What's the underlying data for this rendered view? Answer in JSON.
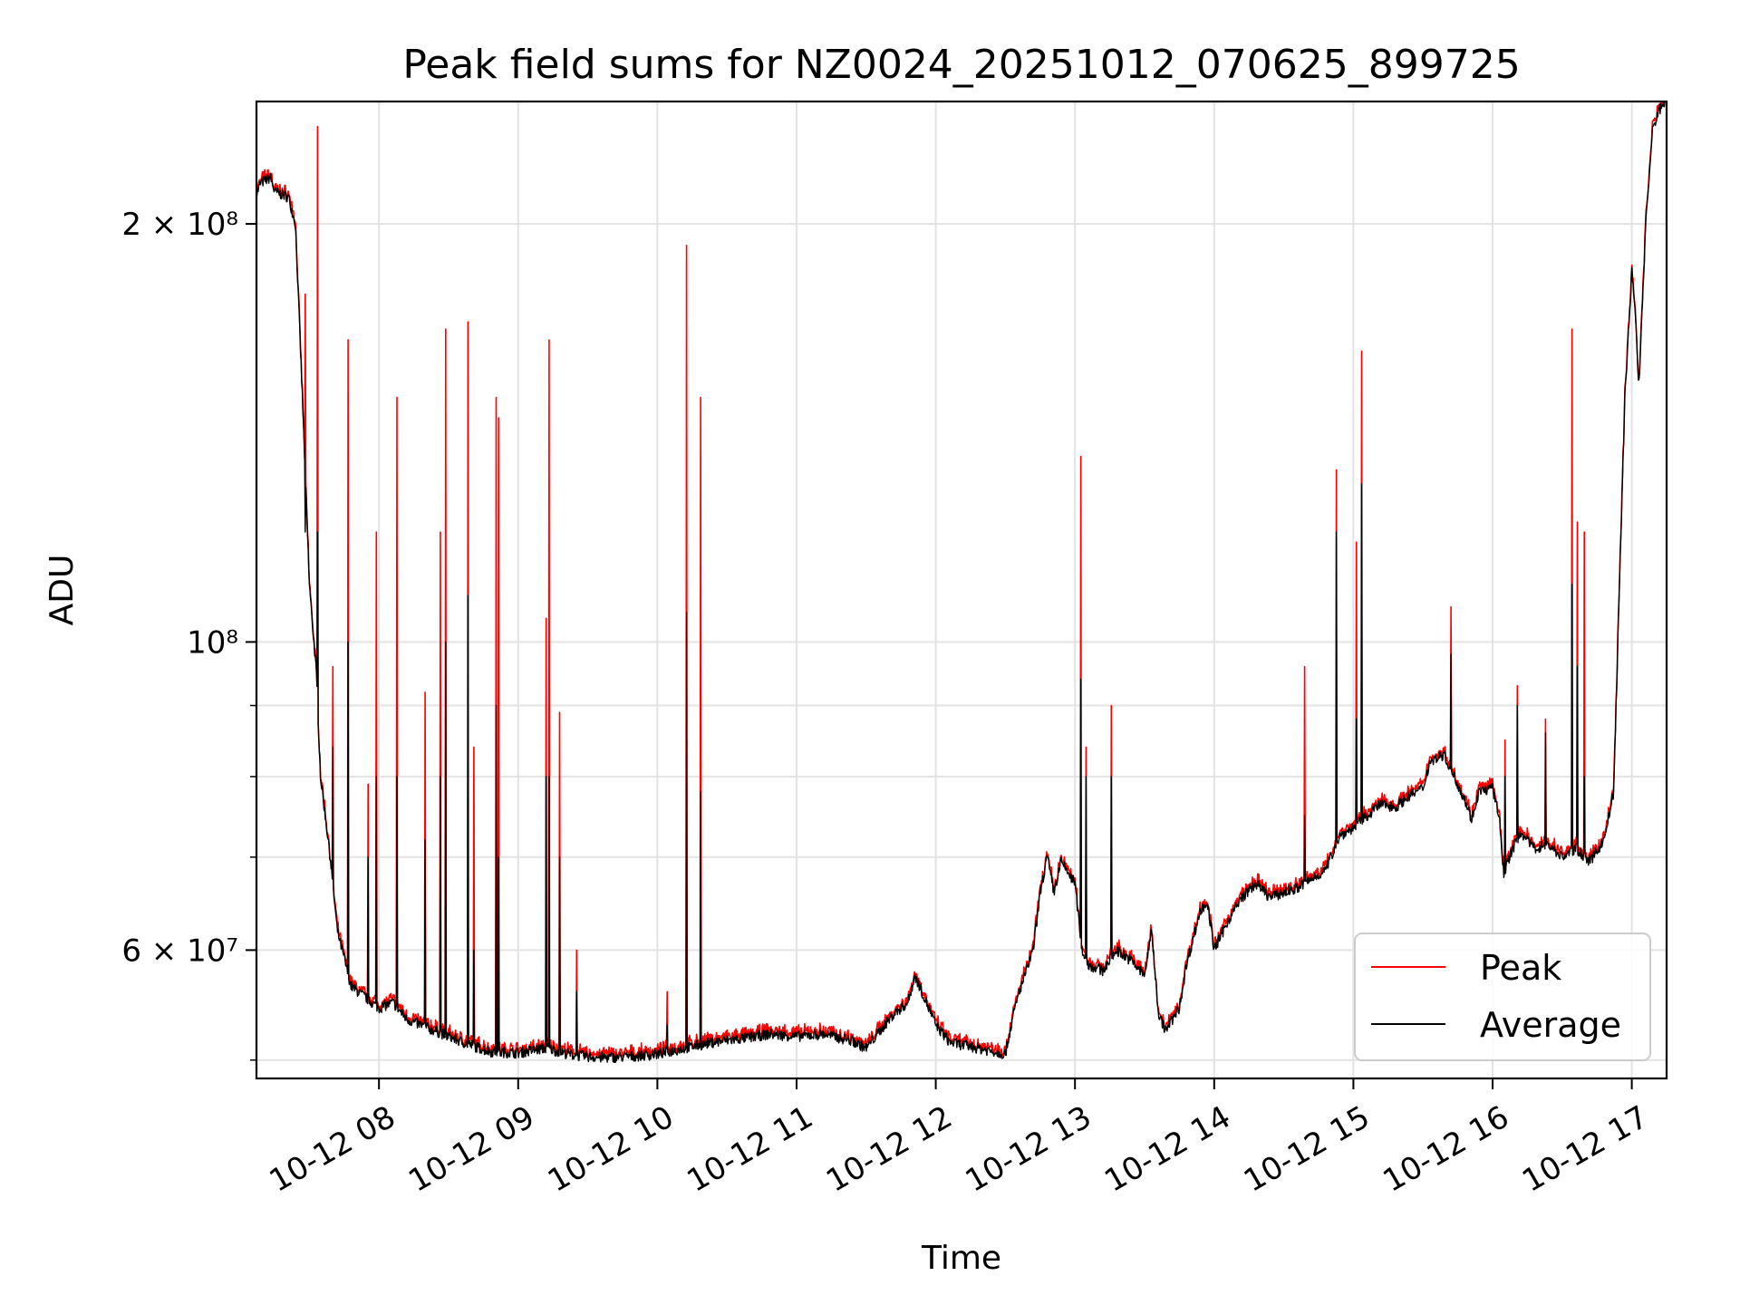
{
  "chart_data": {
    "type": "line",
    "title": "Peak field sums for NZ0024_20251012_070625_899725",
    "xlabel": "Time",
    "ylabel": "ADU",
    "yscale": "log",
    "xlim": [
      7.12,
      17.25
    ],
    "ylim": [
      48500000,
      245000000
    ],
    "grid": true,
    "legend_position": "lower-right",
    "x_ticks": [
      {
        "value": 8,
        "label": "10-12 08"
      },
      {
        "value": 9,
        "label": "10-12 09"
      },
      {
        "value": 10,
        "label": "10-12 10"
      },
      {
        "value": 11,
        "label": "10-12 11"
      },
      {
        "value": 12,
        "label": "10-12 12"
      },
      {
        "value": 13,
        "label": "10-12 13"
      },
      {
        "value": 14,
        "label": "10-12 14"
      },
      {
        "value": 15,
        "label": "10-12 15"
      },
      {
        "value": 16,
        "label": "10-12 16"
      },
      {
        "value": 17,
        "label": "10-12 17"
      }
    ],
    "y_major_ticks": [
      {
        "value": 60000000,
        "label": "6 × 10⁷"
      },
      {
        "value": 100000000,
        "label": "10⁸"
      },
      {
        "value": 200000000,
        "label": "2 × 10⁸"
      }
    ],
    "y_minor_ticks": [
      50000000,
      70000000,
      80000000,
      90000000
    ],
    "series": [
      {
        "name": "Peak",
        "color": "#ff0000"
      },
      {
        "name": "Average",
        "color": "#000000"
      }
    ],
    "baseline_average": [
      [
        7.12,
        210000000
      ],
      [
        7.15,
        214000000
      ],
      [
        7.22,
        216000000
      ],
      [
        7.25,
        211000000
      ],
      [
        7.35,
        209000000
      ],
      [
        7.4,
        200000000
      ],
      [
        7.45,
        150000000
      ],
      [
        7.5,
        110000000
      ],
      [
        7.55,
        95000000
      ],
      [
        7.58,
        80000000
      ],
      [
        7.65,
        70000000
      ],
      [
        7.7,
        62000000
      ],
      [
        7.8,
        56500000
      ],
      [
        7.9,
        55500000
      ],
      [
        8.0,
        54500000
      ],
      [
        8.1,
        55000000
      ],
      [
        8.2,
        53500000
      ],
      [
        8.4,
        52500000
      ],
      [
        8.6,
        51500000
      ],
      [
        8.8,
        50700000
      ],
      [
        9.0,
        50600000
      ],
      [
        9.2,
        51000000
      ],
      [
        9.4,
        50400000
      ],
      [
        9.6,
        50200000
      ],
      [
        9.8,
        50300000
      ],
      [
        10.0,
        50500000
      ],
      [
        10.2,
        51000000
      ],
      [
        10.4,
        51500000
      ],
      [
        10.6,
        51800000
      ],
      [
        10.8,
        52200000
      ],
      [
        11.0,
        52000000
      ],
      [
        11.2,
        52200000
      ],
      [
        11.4,
        51600000
      ],
      [
        11.5,
        51000000
      ],
      [
        11.6,
        52500000
      ],
      [
        11.7,
        54000000
      ],
      [
        11.8,
        55000000
      ],
      [
        11.85,
        57500000
      ],
      [
        11.9,
        56000000
      ],
      [
        12.0,
        53000000
      ],
      [
        12.1,
        51500000
      ],
      [
        12.3,
        51000000
      ],
      [
        12.5,
        50500000
      ],
      [
        12.55,
        53500000
      ],
      [
        12.6,
        56000000
      ],
      [
        12.7,
        60000000
      ],
      [
        12.75,
        66000000
      ],
      [
        12.8,
        70000000
      ],
      [
        12.85,
        66000000
      ],
      [
        12.9,
        69500000
      ],
      [
        13.0,
        67000000
      ],
      [
        13.05,
        60000000
      ],
      [
        13.1,
        58500000
      ],
      [
        13.2,
        58000000
      ],
      [
        13.3,
        60000000
      ],
      [
        13.4,
        59000000
      ],
      [
        13.5,
        57500000
      ],
      [
        13.55,
        62000000
      ],
      [
        13.6,
        54000000
      ],
      [
        13.65,
        52500000
      ],
      [
        13.75,
        54500000
      ],
      [
        13.8,
        58500000
      ],
      [
        13.9,
        64000000
      ],
      [
        13.95,
        65000000
      ],
      [
        14.0,
        60000000
      ],
      [
        14.1,
        63000000
      ],
      [
        14.2,
        65500000
      ],
      [
        14.3,
        67000000
      ],
      [
        14.4,
        65500000
      ],
      [
        14.5,
        66000000
      ],
      [
        14.6,
        66500000
      ],
      [
        14.7,
        67500000
      ],
      [
        14.8,
        68500000
      ],
      [
        14.9,
        72500000
      ],
      [
        15.0,
        73500000
      ],
      [
        15.1,
        75000000
      ],
      [
        15.2,
        76500000
      ],
      [
        15.3,
        76000000
      ],
      [
        15.4,
        77500000
      ],
      [
        15.5,
        78500000
      ],
      [
        15.55,
        82000000
      ],
      [
        15.65,
        83000000
      ],
      [
        15.75,
        79000000
      ],
      [
        15.8,
        77000000
      ],
      [
        15.85,
        74500000
      ],
      [
        15.9,
        78000000
      ],
      [
        16.0,
        78500000
      ],
      [
        16.05,
        74500000
      ],
      [
        16.08,
        68000000
      ],
      [
        16.12,
        70000000
      ],
      [
        16.2,
        73000000
      ],
      [
        16.3,
        71000000
      ],
      [
        16.4,
        71500000
      ],
      [
        16.5,
        70000000
      ],
      [
        16.6,
        71000000
      ],
      [
        16.7,
        69500000
      ],
      [
        16.8,
        72000000
      ],
      [
        16.87,
        78000000
      ],
      [
        16.9,
        100000000
      ],
      [
        16.95,
        150000000
      ],
      [
        17.0,
        185000000
      ],
      [
        17.03,
        170000000
      ],
      [
        17.05,
        152000000
      ],
      [
        17.1,
        200000000
      ],
      [
        17.15,
        234000000
      ],
      [
        17.2,
        242000000
      ],
      [
        17.25,
        246000000
      ]
    ],
    "peak_spikes": [
      {
        "x": 7.47,
        "peak": 178000000,
        "average": 120000000
      },
      {
        "x": 7.56,
        "peak": 235000000,
        "average": 120000000
      },
      {
        "x": 7.67,
        "peak": 96000000,
        "average": 84000000
      },
      {
        "x": 7.78,
        "peak": 165000000,
        "average": 100000000
      },
      {
        "x": 7.92,
        "peak": 79000000,
        "average": 70000000
      },
      {
        "x": 7.98,
        "peak": 120000000,
        "average": 80000000
      },
      {
        "x": 8.13,
        "peak": 150000000,
        "average": 80000000
      },
      {
        "x": 8.33,
        "peak": 92000000,
        "average": 72000000
      },
      {
        "x": 8.44,
        "peak": 120000000,
        "average": 80000000
      },
      {
        "x": 8.48,
        "peak": 168000000,
        "average": 100000000
      },
      {
        "x": 8.64,
        "peak": 170000000,
        "average": 108000000
      },
      {
        "x": 8.68,
        "peak": 84000000,
        "average": 60000000
      },
      {
        "x": 8.84,
        "peak": 150000000,
        "average": 90000000
      },
      {
        "x": 8.86,
        "peak": 145000000,
        "average": 70000000
      },
      {
        "x": 9.2,
        "peak": 104000000,
        "average": 80000000
      },
      {
        "x": 9.22,
        "peak": 165000000,
        "average": 80000000
      },
      {
        "x": 9.3,
        "peak": 89000000,
        "average": 70000000
      },
      {
        "x": 9.42,
        "peak": 60000000,
        "average": 56000000
      },
      {
        "x": 10.07,
        "peak": 56000000,
        "average": 53000000
      },
      {
        "x": 10.21,
        "peak": 193000000,
        "average": 105000000
      },
      {
        "x": 10.31,
        "peak": 150000000,
        "average": 78000000
      },
      {
        "x": 13.04,
        "peak": 136000000,
        "average": 94000000
      },
      {
        "x": 13.08,
        "peak": 84000000,
        "average": 80000000
      },
      {
        "x": 13.26,
        "peak": 90000000,
        "average": 80000000
      },
      {
        "x": 14.65,
        "peak": 96000000,
        "average": 75000000
      },
      {
        "x": 14.88,
        "peak": 133000000,
        "average": 120000000
      },
      {
        "x": 15.02,
        "peak": 118000000,
        "average": 88000000
      },
      {
        "x": 15.06,
        "peak": 162000000,
        "average": 130000000
      },
      {
        "x": 15.7,
        "peak": 106000000,
        "average": 98000000
      },
      {
        "x": 16.09,
        "peak": 85000000,
        "average": 80000000
      },
      {
        "x": 16.18,
        "peak": 93000000,
        "average": 90000000
      },
      {
        "x": 16.38,
        "peak": 88000000,
        "average": 86000000
      },
      {
        "x": 16.57,
        "peak": 168000000,
        "average": 110000000
      },
      {
        "x": 16.61,
        "peak": 122000000,
        "average": 96000000
      },
      {
        "x": 16.66,
        "peak": 120000000,
        "average": 80000000
      }
    ]
  }
}
